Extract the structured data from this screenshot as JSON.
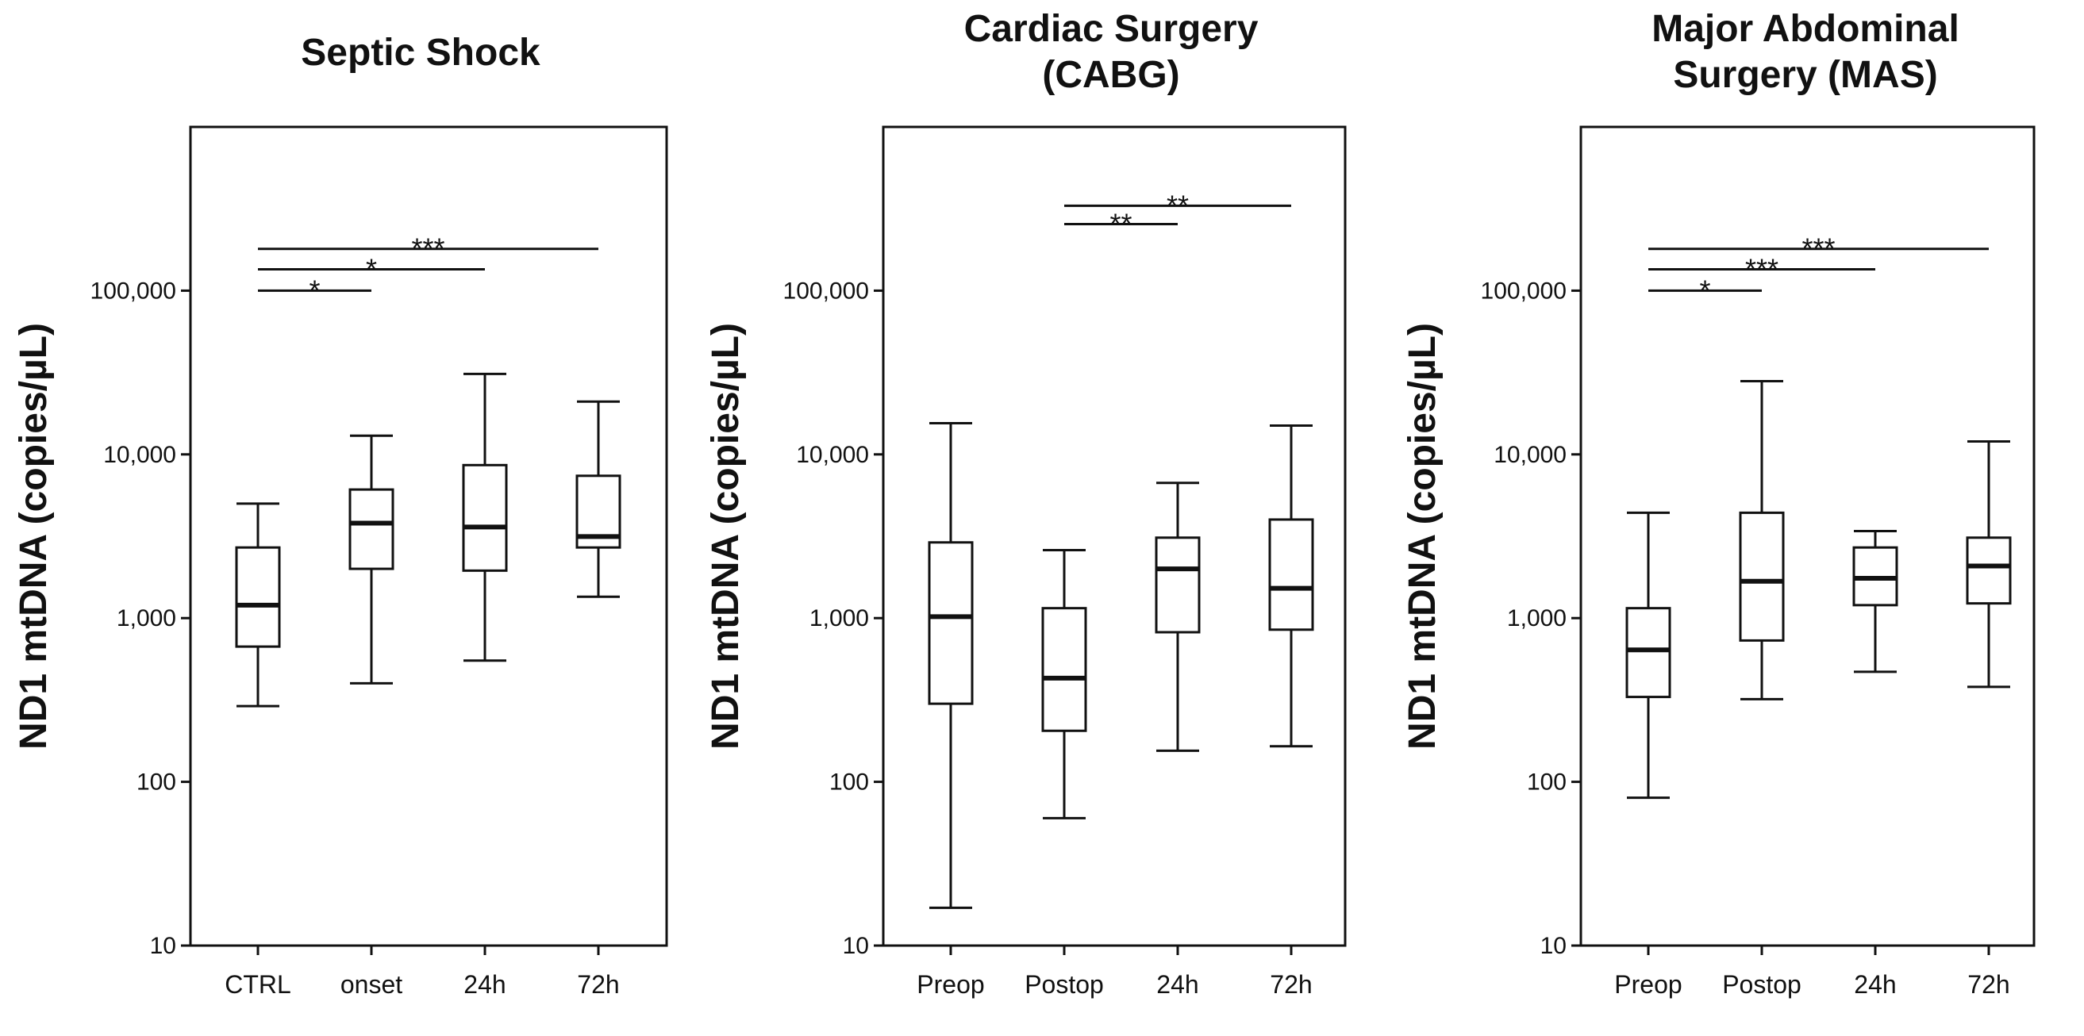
{
  "chart_data": [
    {
      "type": "box",
      "title": [
        "Septic Shock"
      ],
      "ylabel": "ND1 mtDNA (copies/µL)",
      "yscale": "log",
      "ylim": [
        10,
        1000000
      ],
      "yticks": [
        10,
        100,
        1000,
        10000,
        100000
      ],
      "ytick_labels": [
        "10",
        "100",
        "1,000",
        "10,000",
        "100,000"
      ],
      "categories": [
        "CTRL",
        "onset",
        "24h",
        "72h"
      ],
      "boxes": [
        {
          "min": 290,
          "q1": 670,
          "median": 1200,
          "q3": 2700,
          "max": 5000
        },
        {
          "min": 400,
          "q1": 2000,
          "median": 3800,
          "q3": 6100,
          "max": 13000
        },
        {
          "min": 550,
          "q1": 1950,
          "median": 3600,
          "q3": 8600,
          "max": 31000
        },
        {
          "min": 1350,
          "q1": 2700,
          "median": 3150,
          "q3": 7400,
          "max": 21000
        }
      ],
      "significance": [
        {
          "from": 0,
          "to": 1,
          "label": "*",
          "level": 100000
        },
        {
          "from": 0,
          "to": 2,
          "label": "*",
          "level": 135000
        },
        {
          "from": 0,
          "to": 3,
          "label": "***",
          "level": 180000
        }
      ]
    },
    {
      "type": "box",
      "title": [
        "Cardiac Surgery",
        "(CABG)"
      ],
      "ylabel": "ND1 mtDNA (copies/µL)",
      "yscale": "log",
      "ylim": [
        10,
        1000000
      ],
      "yticks": [
        10,
        100,
        1000,
        10000,
        100000
      ],
      "ytick_labels": [
        "10",
        "100",
        "1,000",
        "10,000",
        "100,000"
      ],
      "categories": [
        "Preop",
        "Postop",
        "24h",
        "72h"
      ],
      "boxes": [
        {
          "min": 17,
          "q1": 300,
          "median": 1020,
          "q3": 2900,
          "max": 15500
        },
        {
          "min": 60,
          "q1": 205,
          "median": 430,
          "q3": 1150,
          "max": 2600
        },
        {
          "min": 155,
          "q1": 820,
          "median": 2000,
          "q3": 3100,
          "max": 6700
        },
        {
          "min": 165,
          "q1": 850,
          "median": 1520,
          "q3": 4000,
          "max": 15000
        }
      ],
      "significance": [
        {
          "from": 1,
          "to": 2,
          "label": "**",
          "level": 255000
        },
        {
          "from": 1,
          "to": 3,
          "label": "**",
          "level": 330000
        }
      ]
    },
    {
      "type": "box",
      "title": [
        "Major Abdominal",
        "Surgery (MAS)"
      ],
      "ylabel": "ND1 mtDNA (copies/µL)",
      "yscale": "log",
      "ylim": [
        10,
        1000000
      ],
      "yticks": [
        10,
        100,
        1000,
        10000,
        100000
      ],
      "ytick_labels": [
        "10",
        "100",
        "1,000",
        "10,000",
        "100,000"
      ],
      "categories": [
        "Preop",
        "Postop",
        "24h",
        "72h"
      ],
      "boxes": [
        {
          "min": 80,
          "q1": 330,
          "median": 640,
          "q3": 1150,
          "max": 4400
        },
        {
          "min": 320,
          "q1": 730,
          "median": 1680,
          "q3": 4400,
          "max": 28000
        },
        {
          "min": 470,
          "q1": 1200,
          "median": 1750,
          "q3": 2700,
          "max": 3400
        },
        {
          "min": 380,
          "q1": 1230,
          "median": 2080,
          "q3": 3100,
          "max": 12000
        }
      ],
      "significance": [
        {
          "from": 0,
          "to": 1,
          "label": "*",
          "level": 100000
        },
        {
          "from": 0,
          "to": 2,
          "label": "***",
          "level": 135000
        },
        {
          "from": 0,
          "to": 3,
          "label": "***",
          "level": 180000
        }
      ]
    }
  ]
}
